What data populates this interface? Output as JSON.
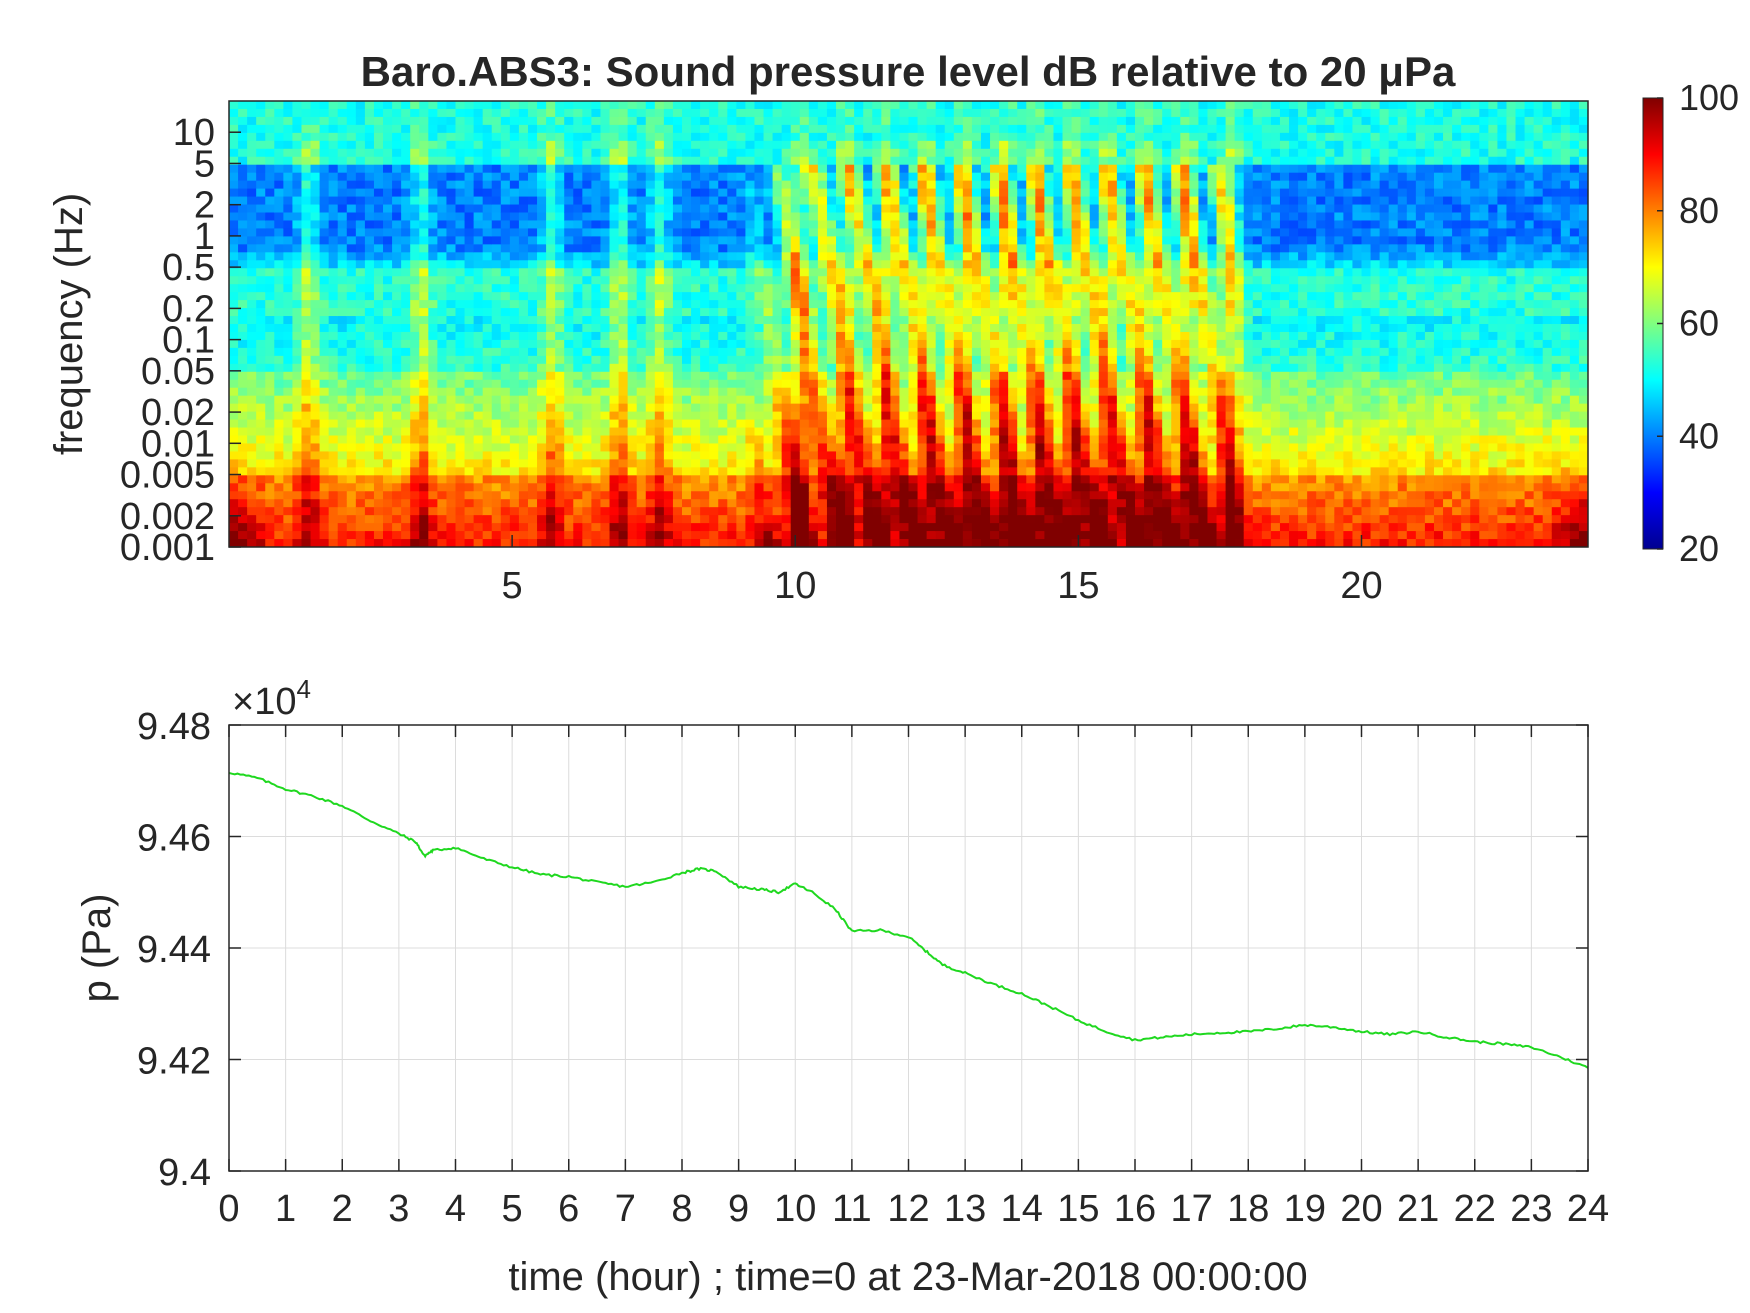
{
  "chart_data": [
    {
      "type": "heatmap",
      "title": "Baro.ABS3: Sound pressure level dB relative to 20 μPa",
      "xlabel": "",
      "ylabel": "frequency (Hz)",
      "xlim": [
        0,
        24
      ],
      "ylim": [
        0.001,
        20
      ],
      "y_scale": "log",
      "x_ticks": [
        5,
        10,
        15,
        20
      ],
      "y_ticks": [
        0.001,
        0.002,
        0.005,
        0.01,
        0.02,
        0.05,
        0.1,
        0.2,
        0.5,
        1,
        2,
        5,
        10
      ],
      "y_tick_labels": [
        "0.001",
        "0.002",
        "0.005",
        "0.01",
        "0.02",
        "0.05",
        "0.1",
        "0.2",
        "0.5",
        "1",
        "2",
        "5",
        "10"
      ],
      "colorbar": {
        "colormap": "jet",
        "clim": [
          20,
          100
        ],
        "ticks": [
          20,
          40,
          60,
          80,
          100
        ]
      },
      "description_bands": [
        {
          "freq_range_hz": [
            0.5,
            10
          ],
          "level_db_range": [
            35,
            45
          ]
        },
        {
          "freq_range_hz": [
            5,
            20
          ],
          "level_db_range": [
            50,
            55
          ]
        },
        {
          "freq_range_hz": [
            0.1,
            0.3
          ],
          "level_db_range": [
            50,
            58
          ]
        },
        {
          "freq_range_hz": [
            0.001,
            0.005
          ],
          "level_db_range": [
            78,
            95
          ]
        }
      ],
      "active_period_hours": [
        10,
        17.5
      ]
    },
    {
      "type": "line",
      "title": "",
      "xlabel": "time (hour) ; time=0 at 23-Mar-2018 00:00:00",
      "ylabel": "p (Pa)",
      "xlim": [
        0,
        24
      ],
      "ylim": [
        94000,
        94800
      ],
      "y_exponent_label": "×10",
      "y_exponent": "4",
      "x_ticks": [
        0,
        1,
        2,
        3,
        4,
        5,
        6,
        7,
        8,
        9,
        10,
        11,
        12,
        13,
        14,
        15,
        16,
        17,
        18,
        19,
        20,
        21,
        22,
        23,
        24
      ],
      "y_ticks": [
        94000,
        94200,
        94400,
        94600,
        94800
      ],
      "y_tick_labels": [
        "9.4",
        "9.42",
        "9.44",
        "9.46",
        "9.48"
      ],
      "grid": true,
      "line_color": "#1fd81f",
      "series": [
        {
          "x": [
            0,
            0.5,
            1,
            1.5,
            2,
            2.5,
            3,
            3.3,
            3.45,
            3.6,
            4,
            4.5,
            5,
            5.5,
            6,
            6.5,
            7,
            7.5,
            8,
            8.3,
            8.6,
            9,
            9.4,
            9.7,
            10,
            10.3,
            10.7,
            11,
            11.5,
            12,
            12.3,
            12.6,
            13,
            13.5,
            14,
            14.5,
            15,
            15.5,
            16,
            16.5,
            17,
            17.5,
            18,
            18.5,
            19,
            19.5,
            20,
            20.5,
            21,
            21.5,
            22,
            22.5,
            23,
            23.5,
            24
          ],
          "y": [
            94715,
            94705,
            94685,
            94672,
            94655,
            94628,
            94605,
            94590,
            94565,
            94575,
            94580,
            94560,
            94545,
            94532,
            94528,
            94518,
            94510,
            94518,
            94535,
            94542,
            94538,
            94510,
            94505,
            94500,
            94515,
            94500,
            94470,
            94430,
            94432,
            94420,
            94395,
            94370,
            94355,
            94335,
            94318,
            94295,
            94270,
            94250,
            94235,
            94240,
            94245,
            94248,
            94250,
            94255,
            94262,
            94258,
            94250,
            94245,
            94250,
            94240,
            94232,
            94228,
            94222,
            94205,
            94185
          ]
        }
      ]
    }
  ]
}
